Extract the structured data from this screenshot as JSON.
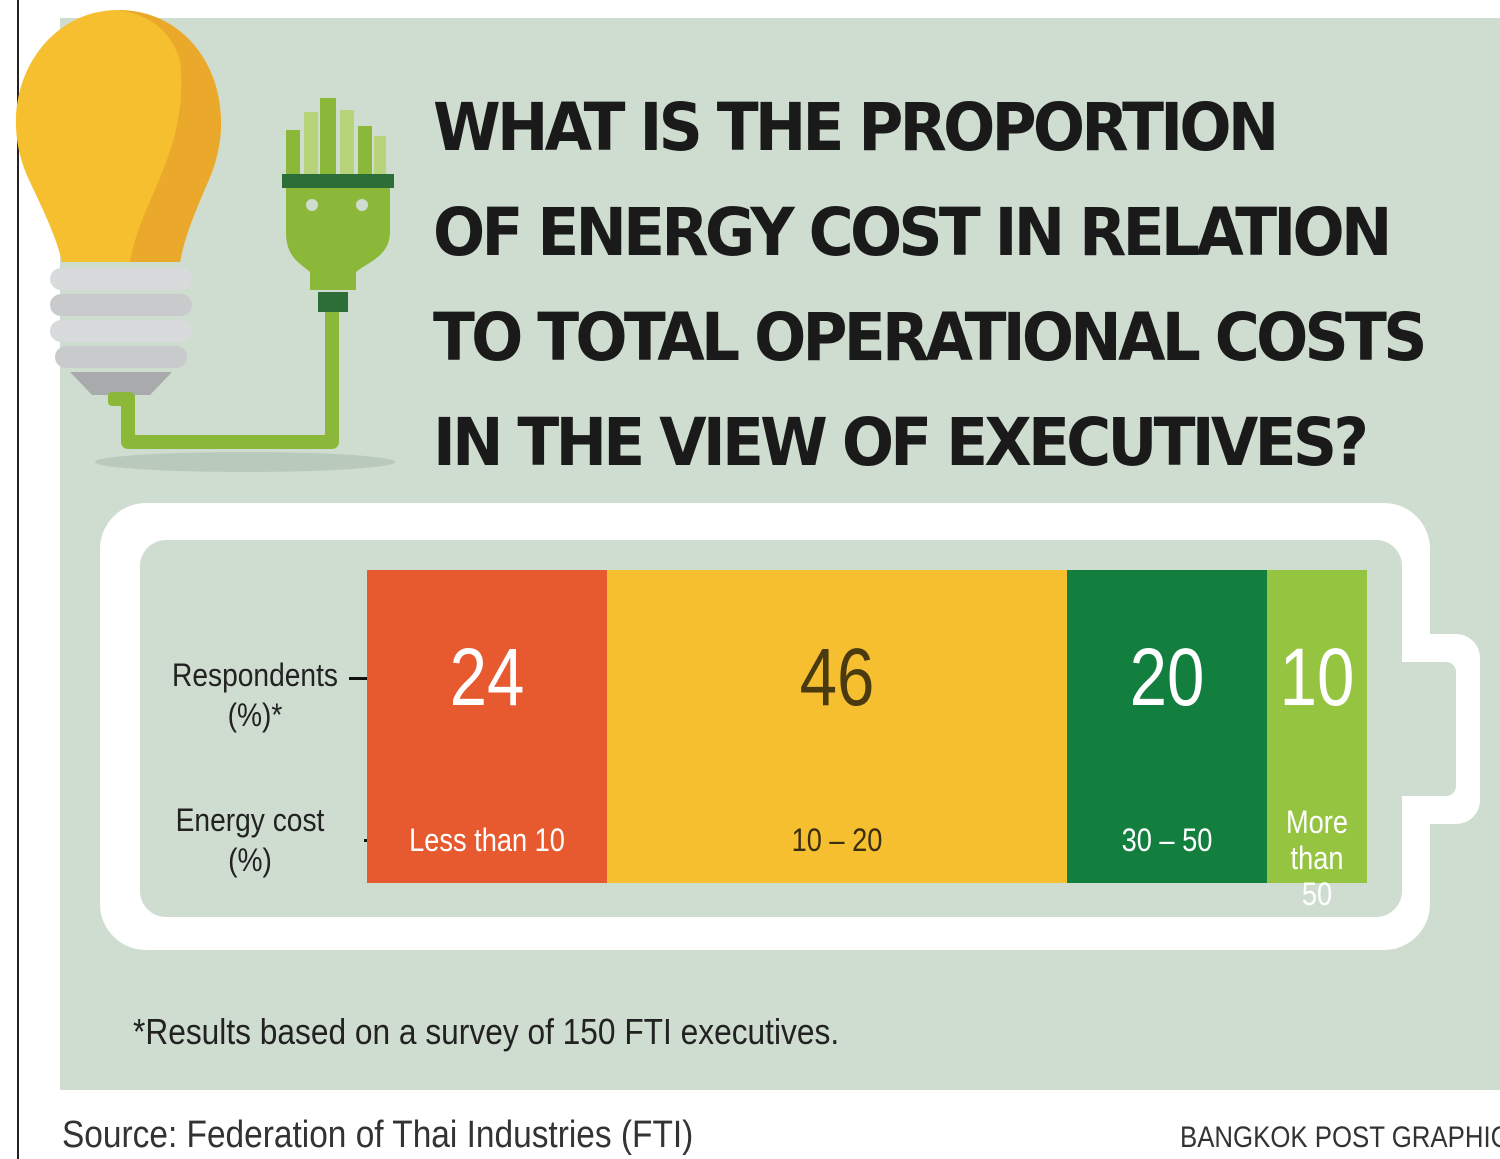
{
  "header": {
    "title_lines": [
      "WHAT IS THE PROPORTION",
      "OF ENERGY COST IN RELATION",
      "TO TOTAL OPERATIONAL COSTS",
      "IN THE VIEW OF EXECUTIVES?"
    ]
  },
  "chart_data": {
    "type": "bar",
    "orientation": "stacked-horizontal",
    "title": "WHAT IS THE PROPORTION OF ENERGY COST IN RELATION TO TOTAL OPERATIONAL COSTS IN THE VIEW OF EXECUTIVES?",
    "row_labels": {
      "respondents": [
        "Respondents",
        "(%)*"
      ],
      "energy_cost": [
        "Energy cost",
        "(%)"
      ]
    },
    "categories": [
      "Less than 10",
      "10 – 20",
      "30 – 50",
      "More than 50"
    ],
    "category_lines": [
      [
        "Less than 10"
      ],
      [
        "10 – 20"
      ],
      [
        "30 – 50"
      ],
      [
        "More",
        "than 50"
      ]
    ],
    "values": [
      24,
      46,
      20,
      10
    ],
    "colors": [
      "#e75a2f",
      "#f6bf30",
      "#137f3f",
      "#95c441"
    ],
    "value_colors": [
      "#ffffff",
      "#4a3a10",
      "#ffffff",
      "#ffffff"
    ],
    "label_colors": [
      "#ffffff",
      "#3a2e10",
      "#ffffff",
      "#ffffff"
    ],
    "total": 100
  },
  "footnote": "*Results based on a survey of 150 FTI executives.",
  "source": "Source: Federation of Thai Industries (FTI)",
  "credit": "BANGKOK POST GRAPHICS",
  "colors": {
    "background": "#cfddd0",
    "bulb": "#f6bf30",
    "plug": "#8cb83a"
  }
}
